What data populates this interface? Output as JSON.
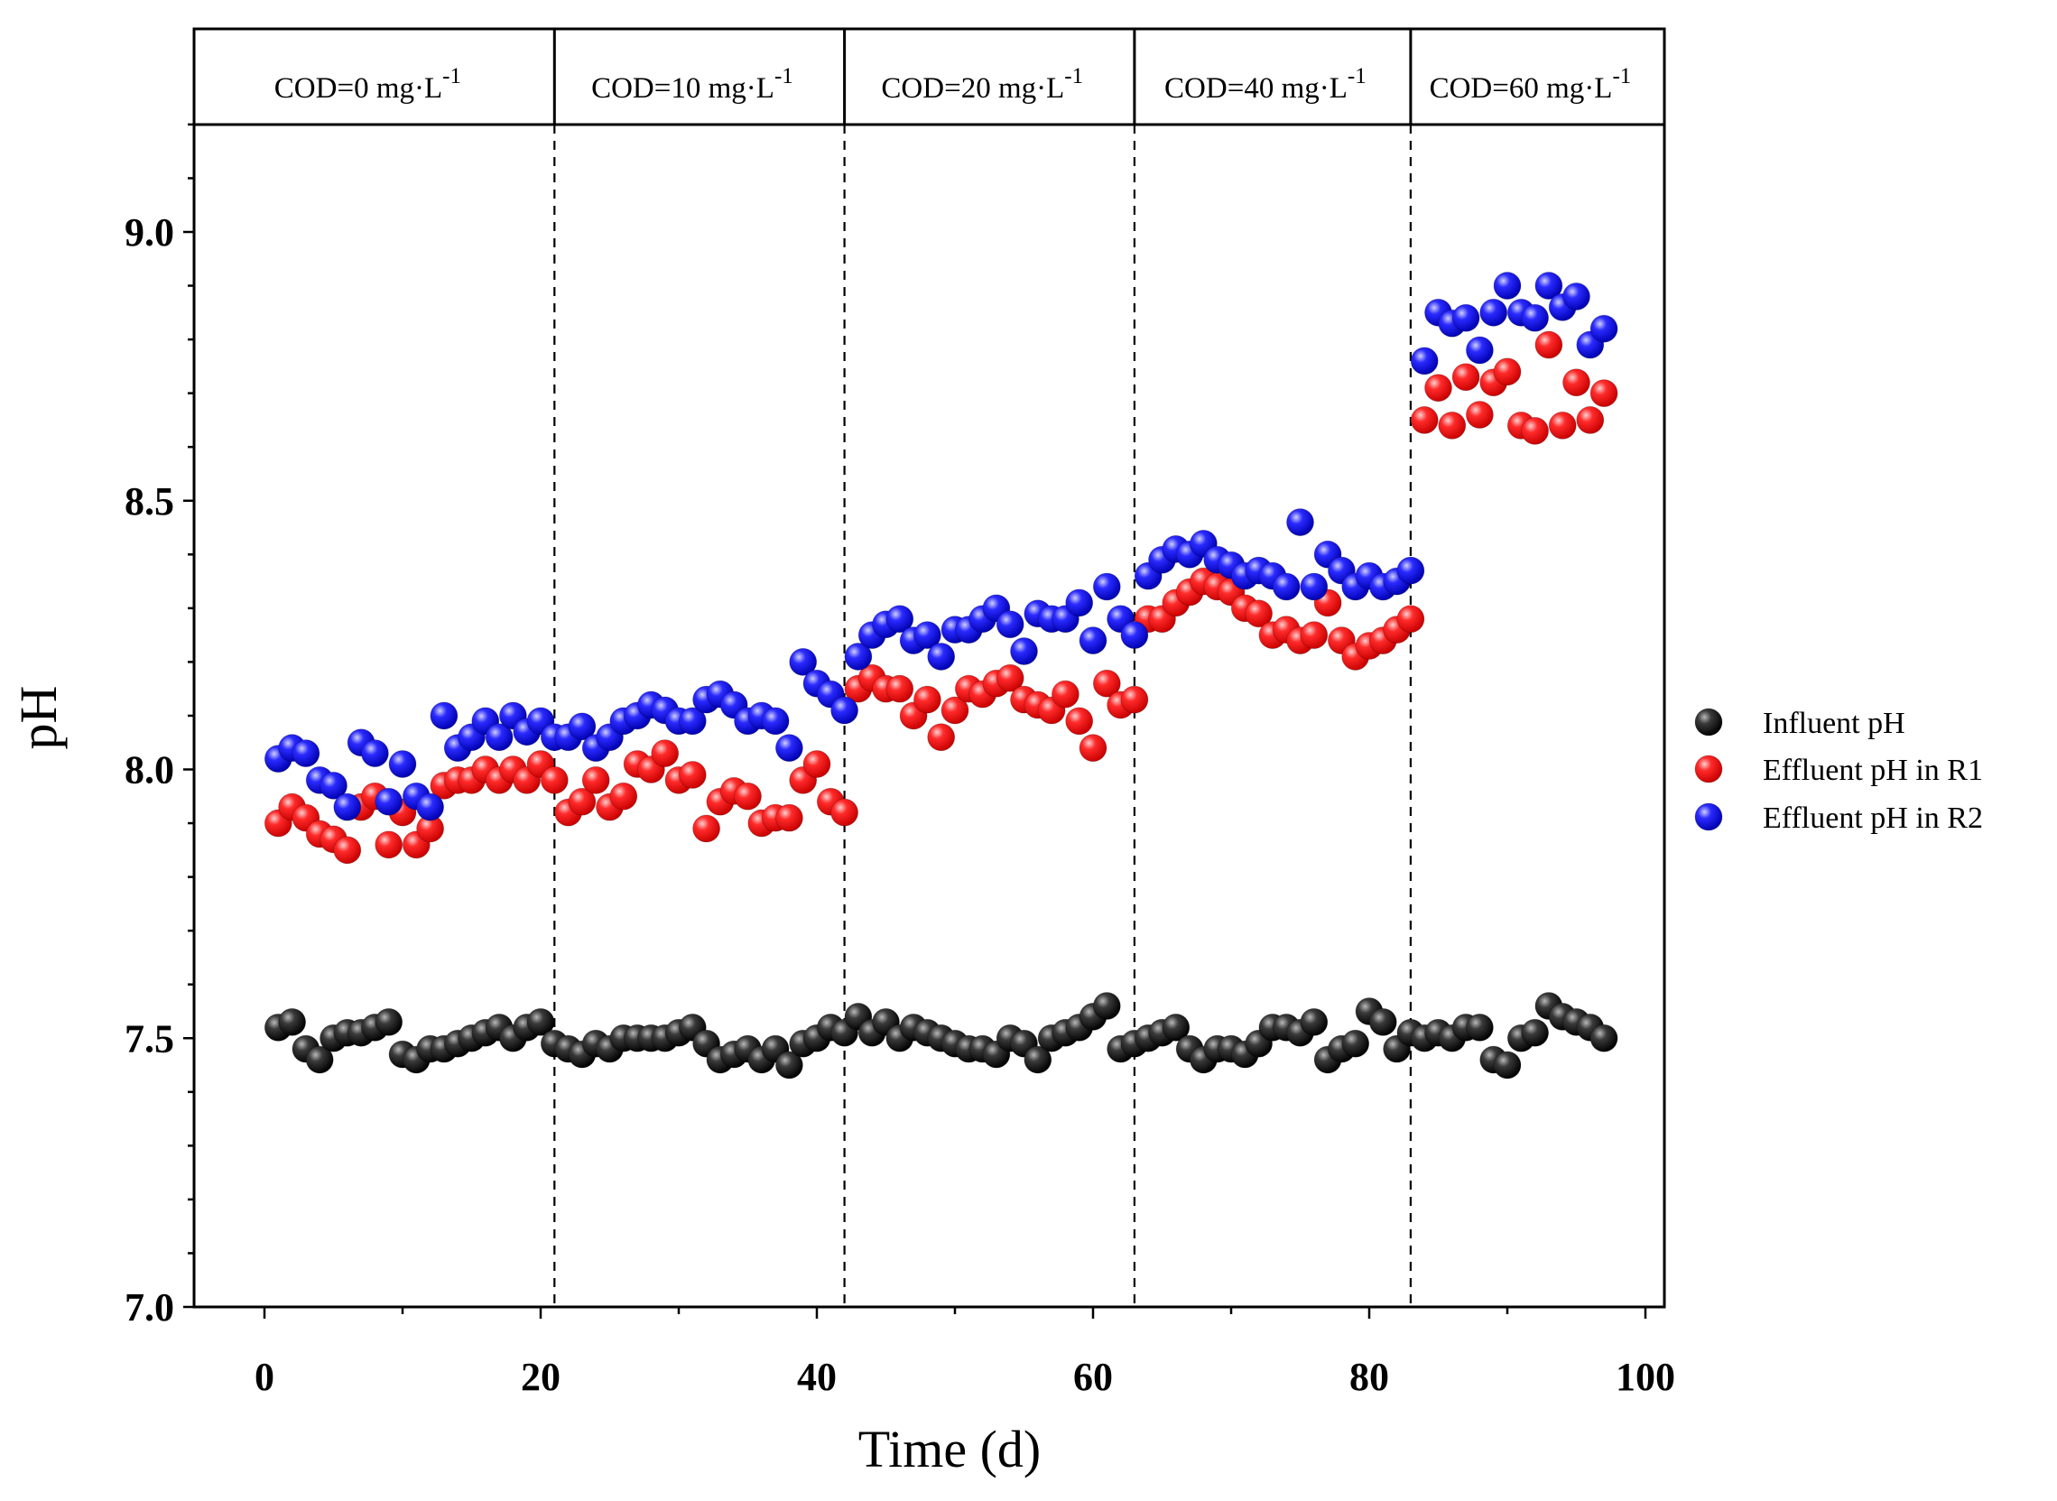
{
  "chart_data": {
    "type": "scatter",
    "xlabel": "Time (d)",
    "ylabel": "pH",
    "xlim": [
      -5,
      102
    ],
    "ylim": [
      7.0,
      9.2
    ],
    "x_ticks": [
      0,
      20,
      40,
      60,
      80,
      100
    ],
    "x_tick_labels": [
      "0",
      "20",
      "40",
      "60",
      "80",
      "100"
    ],
    "y_ticks": [
      7.0,
      7.5,
      8.0,
      8.5,
      9.0
    ],
    "y_tick_labels": [
      "7.0",
      "7.5",
      "8.0",
      "8.5",
      "9.0"
    ],
    "grid": false,
    "legend_position": "right",
    "phase_boundaries": [
      21,
      42,
      63,
      83
    ],
    "phases": [
      {
        "label": "COD=0 mg·L",
        "superscript": "-1",
        "start": -5,
        "end": 21
      },
      {
        "label": "COD=10 mg·L",
        "superscript": "-1",
        "start": 21,
        "end": 42
      },
      {
        "label": "COD=20 mg·L",
        "superscript": "-1",
        "start": 42,
        "end": 63
      },
      {
        "label": "COD=40 mg·L",
        "superscript": "-1",
        "start": 63,
        "end": 83
      },
      {
        "label": "COD=60 mg·L",
        "superscript": "-1",
        "start": 83,
        "end": 102
      }
    ],
    "series": [
      {
        "name": "Influent pH",
        "color": "#111111",
        "x": [
          1,
          2,
          3,
          4,
          5,
          6,
          7,
          8,
          9,
          10,
          11,
          12,
          13,
          14,
          15,
          16,
          17,
          18,
          19,
          20,
          21,
          22,
          23,
          24,
          25,
          26,
          27,
          28,
          29,
          30,
          31,
          32,
          33,
          34,
          35,
          36,
          37,
          38,
          39,
          40,
          41,
          42,
          43,
          44,
          45,
          46,
          47,
          48,
          49,
          50,
          51,
          52,
          53,
          54,
          55,
          56,
          57,
          58,
          59,
          60,
          61,
          62,
          63,
          64,
          65,
          66,
          67,
          68,
          69,
          70,
          71,
          72,
          73,
          74,
          75,
          76,
          77,
          78,
          79,
          80,
          81,
          82,
          83,
          84,
          85,
          86,
          87,
          88,
          89,
          90,
          91,
          92,
          93,
          94,
          95,
          96,
          97
        ],
        "y": [
          7.52,
          7.53,
          7.48,
          7.46,
          7.5,
          7.51,
          7.51,
          7.52,
          7.53,
          7.47,
          7.46,
          7.48,
          7.48,
          7.49,
          7.5,
          7.51,
          7.52,
          7.5,
          7.52,
          7.53,
          7.49,
          7.48,
          7.47,
          7.49,
          7.48,
          7.5,
          7.5,
          7.5,
          7.5,
          7.51,
          7.52,
          7.49,
          7.46,
          7.47,
          7.48,
          7.46,
          7.48,
          7.45,
          7.49,
          7.5,
          7.52,
          7.51,
          7.54,
          7.51,
          7.53,
          7.5,
          7.52,
          7.51,
          7.5,
          7.49,
          7.48,
          7.48,
          7.47,
          7.5,
          7.49,
          7.46,
          7.5,
          7.51,
          7.52,
          7.54,
          7.56,
          7.48,
          7.49,
          7.5,
          7.51,
          7.52,
          7.48,
          7.46,
          7.48,
          7.48,
          7.47,
          7.49,
          7.52,
          7.52,
          7.51,
          7.53,
          7.46,
          7.48,
          7.49,
          7.55,
          7.53,
          7.48,
          7.51,
          7.5,
          7.51,
          7.5,
          7.52,
          7.52,
          7.46,
          7.45,
          7.5,
          7.51,
          7.56,
          7.54,
          7.53,
          7.52,
          7.5
        ]
      },
      {
        "name": "Effluent pH in R1",
        "color": "#ff1a1a",
        "x": [
          1,
          2,
          3,
          4,
          5,
          6,
          7,
          8,
          9,
          10,
          11,
          12,
          13,
          14,
          15,
          16,
          17,
          18,
          19,
          20,
          21,
          22,
          23,
          24,
          25,
          26,
          27,
          28,
          29,
          30,
          31,
          32,
          33,
          34,
          35,
          36,
          37,
          38,
          39,
          40,
          41,
          42,
          43,
          44,
          45,
          46,
          47,
          48,
          49,
          50,
          51,
          52,
          53,
          54,
          55,
          56,
          57,
          58,
          59,
          60,
          61,
          62,
          63,
          64,
          65,
          66,
          67,
          68,
          69,
          70,
          71,
          72,
          73,
          74,
          75,
          76,
          77,
          78,
          79,
          80,
          81,
          82,
          83,
          84,
          85,
          86,
          87,
          88,
          89,
          90,
          91,
          92,
          93,
          94,
          95,
          96,
          97
        ],
        "y": [
          7.9,
          7.93,
          7.91,
          7.88,
          7.87,
          7.85,
          7.93,
          7.95,
          7.86,
          7.92,
          7.86,
          7.89,
          7.97,
          7.98,
          7.98,
          8.0,
          7.98,
          8.0,
          7.98,
          8.01,
          7.98,
          7.92,
          7.94,
          7.98,
          7.93,
          7.95,
          8.01,
          8.0,
          8.03,
          7.98,
          7.99,
          7.89,
          7.94,
          7.96,
          7.95,
          7.9,
          7.91,
          7.91,
          7.98,
          8.01,
          7.94,
          7.92,
          8.15,
          8.17,
          8.15,
          8.15,
          8.1,
          8.13,
          8.06,
          8.11,
          8.15,
          8.14,
          8.16,
          8.17,
          8.13,
          8.12,
          8.11,
          8.14,
          8.09,
          8.04,
          8.16,
          8.12,
          8.13,
          8.28,
          8.28,
          8.31,
          8.33,
          8.35,
          8.34,
          8.33,
          8.3,
          8.29,
          8.25,
          8.26,
          8.24,
          8.25,
          8.31,
          8.24,
          8.21,
          8.23,
          8.24,
          8.26,
          8.28,
          8.65,
          8.71,
          8.64,
          8.73,
          8.66,
          8.72,
          8.74,
          8.64,
          8.63,
          8.79,
          8.64,
          8.72,
          8.65,
          8.7
        ]
      },
      {
        "name": "Effluent pH in R2",
        "color": "#1a1aff",
        "x": [
          1,
          2,
          3,
          4,
          5,
          6,
          7,
          8,
          9,
          10,
          11,
          12,
          13,
          14,
          15,
          16,
          17,
          18,
          19,
          20,
          21,
          22,
          23,
          24,
          25,
          26,
          27,
          28,
          29,
          30,
          31,
          32,
          33,
          34,
          35,
          36,
          37,
          38,
          39,
          40,
          41,
          42,
          43,
          44,
          45,
          46,
          47,
          48,
          49,
          50,
          51,
          52,
          53,
          54,
          55,
          56,
          57,
          58,
          59,
          60,
          61,
          62,
          63,
          64,
          65,
          66,
          67,
          68,
          69,
          70,
          71,
          72,
          73,
          74,
          75,
          76,
          77,
          78,
          79,
          80,
          81,
          82,
          83,
          84,
          85,
          86,
          87,
          88,
          89,
          90,
          91,
          92,
          93,
          94,
          95,
          96,
          97
        ],
        "y": [
          8.02,
          8.04,
          8.03,
          7.98,
          7.97,
          7.93,
          8.05,
          8.03,
          7.94,
          8.01,
          7.95,
          7.93,
          8.1,
          8.04,
          8.06,
          8.09,
          8.06,
          8.1,
          8.07,
          8.09,
          8.06,
          8.06,
          8.08,
          8.04,
          8.06,
          8.09,
          8.1,
          8.12,
          8.11,
          8.09,
          8.09,
          8.13,
          8.14,
          8.12,
          8.09,
          8.1,
          8.09,
          8.04,
          8.2,
          8.16,
          8.14,
          8.11,
          8.21,
          8.25,
          8.27,
          8.28,
          8.24,
          8.25,
          8.21,
          8.26,
          8.26,
          8.28,
          8.3,
          8.27,
          8.22,
          8.29,
          8.28,
          8.28,
          8.31,
          8.24,
          8.34,
          8.28,
          8.25,
          8.36,
          8.39,
          8.41,
          8.4,
          8.42,
          8.39,
          8.38,
          8.36,
          8.37,
          8.36,
          8.34,
          8.46,
          8.34,
          8.4,
          8.37,
          8.34,
          8.36,
          8.34,
          8.35,
          8.37,
          8.76,
          8.85,
          8.83,
          8.84,
          8.78,
          8.85,
          8.9,
          8.85,
          8.84,
          8.9,
          8.86,
          8.88,
          8.79,
          8.82
        ]
      }
    ]
  }
}
